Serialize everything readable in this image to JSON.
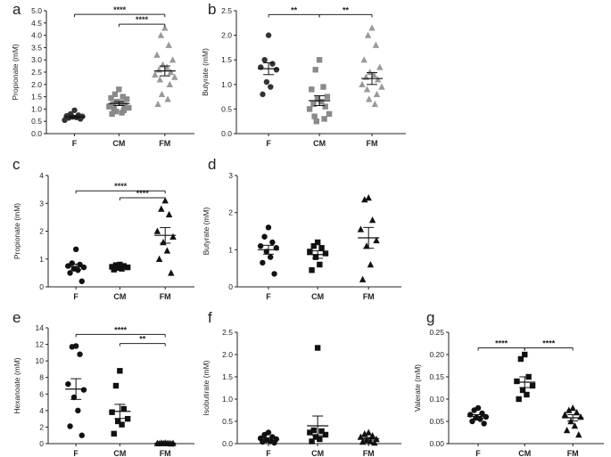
{
  "chart_data": [
    {
      "panel": "a",
      "type": "scatter",
      "ylabel": "Propionate (mM)",
      "ylim": [
        0,
        5
      ],
      "yticks": [
        "0.0",
        "0.5",
        "1.0",
        "1.5",
        "2.0",
        "2.5",
        "3.0",
        "3.5",
        "4.0",
        "4.5",
        "5.0"
      ],
      "categories": [
        "F",
        "CM",
        "FM"
      ],
      "marker_color": "#333333",
      "groups": [
        {
          "name": "F",
          "marker": "circle",
          "color": "#333333",
          "mean": 0.68,
          "sem": 0.05,
          "values": [
            0.95,
            0.8,
            0.75,
            0.72,
            0.7,
            0.68,
            0.66,
            0.64,
            0.6,
            0.55
          ]
        },
        {
          "name": "CM",
          "marker": "square",
          "color": "#8a8a8a",
          "mean": 1.22,
          "sem": 0.08,
          "values": [
            1.8,
            1.6,
            1.5,
            1.45,
            1.4,
            1.3,
            1.25,
            1.2,
            1.15,
            1.1,
            1.05,
            1.0,
            0.95,
            0.9,
            0.85,
            0.8
          ]
        },
        {
          "name": "FM",
          "marker": "triangle",
          "color": "#9a9a9a",
          "mean": 2.55,
          "sem": 0.2,
          "values": [
            4.3,
            4.0,
            3.6,
            3.2,
            3.0,
            2.8,
            2.7,
            2.6,
            2.5,
            2.4,
            2.3,
            2.2,
            2.0,
            1.6,
            1.4,
            1.2
          ]
        }
      ],
      "brackets": [
        {
          "from": "F",
          "to": "FM",
          "label": "****",
          "y": 4.85
        },
        {
          "from": "CM",
          "to": "FM",
          "label": "****",
          "y": 4.45
        }
      ]
    },
    {
      "panel": "b",
      "type": "scatter",
      "ylabel": "Butyrate (mM)",
      "ylim": [
        0,
        2.5
      ],
      "yticks": [
        "0.0",
        "0.5",
        "1.0",
        "1.5",
        "2.0",
        "2.5"
      ],
      "categories": [
        "F",
        "CM",
        "FM"
      ],
      "groups": [
        {
          "name": "F",
          "marker": "circle",
          "color": "#333333",
          "mean": 1.32,
          "sem": 0.12,
          "values": [
            2.0,
            1.5,
            1.42,
            1.35,
            1.3,
            1.05,
            0.95,
            0.8
          ]
        },
        {
          "name": "CM",
          "marker": "square",
          "color": "#8a8a8a",
          "mean": 0.67,
          "sem": 0.1,
          "values": [
            1.5,
            1.3,
            0.95,
            0.9,
            0.75,
            0.7,
            0.65,
            0.6,
            0.55,
            0.5,
            0.4,
            0.35,
            0.3,
            0.25
          ]
        },
        {
          "name": "FM",
          "marker": "triangle",
          "color": "#9a9a9a",
          "mean": 1.12,
          "sem": 0.12,
          "values": [
            2.15,
            2.0,
            1.8,
            1.5,
            1.35,
            1.25,
            1.2,
            1.15,
            1.1,
            1.0,
            0.95,
            0.9,
            0.8,
            0.7,
            0.6
          ]
        }
      ],
      "brackets": [
        {
          "from": "F",
          "to": "CM",
          "label": "**",
          "y": 2.42
        },
        {
          "from": "CM",
          "to": "FM",
          "label": "**",
          "y": 2.42
        }
      ]
    },
    {
      "panel": "c",
      "type": "scatter",
      "ylabel": "Propionate (mM)",
      "ylim": [
        0,
        4
      ],
      "yticks": [
        "0",
        "1",
        "2",
        "3",
        "4"
      ],
      "categories": [
        "F",
        "CM",
        "FM"
      ],
      "groups": [
        {
          "name": "F",
          "marker": "circle",
          "color": "#111111",
          "mean": 0.72,
          "sem": 0.1,
          "values": [
            1.35,
            0.85,
            0.8,
            0.75,
            0.7,
            0.65,
            0.6,
            0.5,
            0.2
          ]
        },
        {
          "name": "CM",
          "marker": "square",
          "color": "#111111",
          "mean": 0.7,
          "sem": 0.04,
          "values": [
            0.8,
            0.78,
            0.75,
            0.72,
            0.7,
            0.68,
            0.65,
            0.62
          ]
        },
        {
          "name": "FM",
          "marker": "triangle",
          "color": "#111111",
          "mean": 1.85,
          "sem": 0.28,
          "values": [
            3.1,
            2.8,
            2.6,
            2.0,
            1.8,
            1.6,
            1.3,
            1.0,
            0.5
          ]
        }
      ],
      "brackets": [
        {
          "from": "F",
          "to": "FM",
          "label": "****",
          "y": 3.45
        },
        {
          "from": "CM",
          "to": "FM",
          "label": "****",
          "y": 3.2
        }
      ]
    },
    {
      "panel": "d",
      "type": "scatter",
      "ylabel": "Butyrate (mM)",
      "ylim": [
        0,
        3
      ],
      "yticks": [
        "0",
        "1",
        "2",
        "3"
      ],
      "categories": [
        "F",
        "CM",
        "FM"
      ],
      "groups": [
        {
          "name": "F",
          "marker": "circle",
          "color": "#111111",
          "mean": 1.0,
          "sem": 0.12,
          "values": [
            1.6,
            1.35,
            1.2,
            1.1,
            1.05,
            0.95,
            0.8,
            0.65,
            0.35
          ]
        },
        {
          "name": "CM",
          "marker": "square",
          "color": "#111111",
          "mean": 0.87,
          "sem": 0.1,
          "values": [
            1.2,
            1.1,
            1.05,
            0.95,
            0.9,
            0.8,
            0.6,
            0.45
          ]
        },
        {
          "name": "FM",
          "marker": "triangle",
          "color": "#111111",
          "mean": 1.32,
          "sem": 0.28,
          "values": [
            2.4,
            2.35,
            1.8,
            1.55,
            1.25,
            1.1,
            0.6,
            0.2
          ]
        }
      ],
      "brackets": []
    },
    {
      "panel": "e",
      "type": "scatter",
      "ylabel": "Hexanoate (mM)",
      "ylim": [
        0,
        14
      ],
      "yticks": [
        "0",
        "2",
        "4",
        "6",
        "8",
        "10",
        "12",
        "14"
      ],
      "categories": [
        "F",
        "CM",
        "FM"
      ],
      "groups": [
        {
          "name": "F",
          "marker": "circle",
          "color": "#111111",
          "mean": 6.6,
          "sem": 1.25,
          "values": [
            11.8,
            11.7,
            10.8,
            7.2,
            6.5,
            5.6,
            4.0,
            2.1,
            1.0
          ]
        },
        {
          "name": "CM",
          "marker": "square",
          "color": "#111111",
          "mean": 3.9,
          "sem": 0.85,
          "values": [
            8.8,
            7.0,
            4.2,
            3.8,
            3.0,
            2.7,
            2.3,
            1.2
          ]
        },
        {
          "name": "FM",
          "marker": "triangle",
          "color": "#111111",
          "mean": 0.05,
          "sem": 0.02,
          "values": [
            0.1,
            0.08,
            0.06,
            0.05,
            0.05,
            0.04,
            0.03,
            0.02,
            0.0
          ]
        }
      ],
      "brackets": [
        {
          "from": "F",
          "to": "FM",
          "label": "****",
          "y": 13.2
        },
        {
          "from": "CM",
          "to": "FM",
          "label": "**",
          "y": 12.1
        }
      ]
    },
    {
      "panel": "f",
      "type": "scatter",
      "ylabel": "Isobutirate (mM)",
      "ylim": [
        0,
        2.5
      ],
      "yticks": [
        "0.0",
        "0.5",
        "1.0",
        "1.5",
        "2.0",
        "2.5"
      ],
      "categories": [
        "F",
        "CM",
        "FM"
      ],
      "groups": [
        {
          "name": "F",
          "marker": "circle",
          "color": "#111111",
          "mean": 0.1,
          "sem": 0.03,
          "values": [
            0.25,
            0.2,
            0.15,
            0.12,
            0.1,
            0.08,
            0.05,
            0.04,
            0.02
          ]
        },
        {
          "name": "CM",
          "marker": "square",
          "color": "#111111",
          "mean": 0.4,
          "sem": 0.22,
          "values": [
            2.15,
            0.3,
            0.28,
            0.25,
            0.2,
            0.15,
            0.1,
            0.05
          ]
        },
        {
          "name": "FM",
          "marker": "triangle",
          "color": "#111111",
          "mean": 0.11,
          "sem": 0.03,
          "values": [
            0.25,
            0.22,
            0.18,
            0.15,
            0.1,
            0.08,
            0.05,
            0.04,
            0.02
          ]
        }
      ],
      "brackets": []
    },
    {
      "panel": "g",
      "type": "scatter",
      "ylabel": "Valerate (mM)",
      "ylim": [
        0,
        0.25
      ],
      "yticks": [
        "0.00",
        "0.05",
        "0.10",
        "0.15",
        "0.20",
        "0.25"
      ],
      "categories": [
        "F",
        "CM",
        "FM"
      ],
      "groups": [
        {
          "name": "F",
          "marker": "circle",
          "color": "#111111",
          "mean": 0.061,
          "sem": 0.004,
          "values": [
            0.08,
            0.075,
            0.068,
            0.065,
            0.06,
            0.058,
            0.055,
            0.05,
            0.045
          ]
        },
        {
          "name": "CM",
          "marker": "square",
          "color": "#111111",
          "mean": 0.138,
          "sem": 0.012,
          "values": [
            0.2,
            0.19,
            0.15,
            0.14,
            0.13,
            0.12,
            0.11,
            0.1
          ]
        },
        {
          "name": "FM",
          "marker": "triangle",
          "color": "#111111",
          "mean": 0.058,
          "sem": 0.007,
          "values": [
            0.08,
            0.075,
            0.07,
            0.065,
            0.06,
            0.05,
            0.04,
            0.03,
            0.02
          ]
        }
      ],
      "brackets": [
        {
          "from": "F",
          "to": "CM",
          "label": "****",
          "y": 0.215
        },
        {
          "from": "CM",
          "to": "FM",
          "label": "****",
          "y": 0.215
        }
      ]
    }
  ]
}
